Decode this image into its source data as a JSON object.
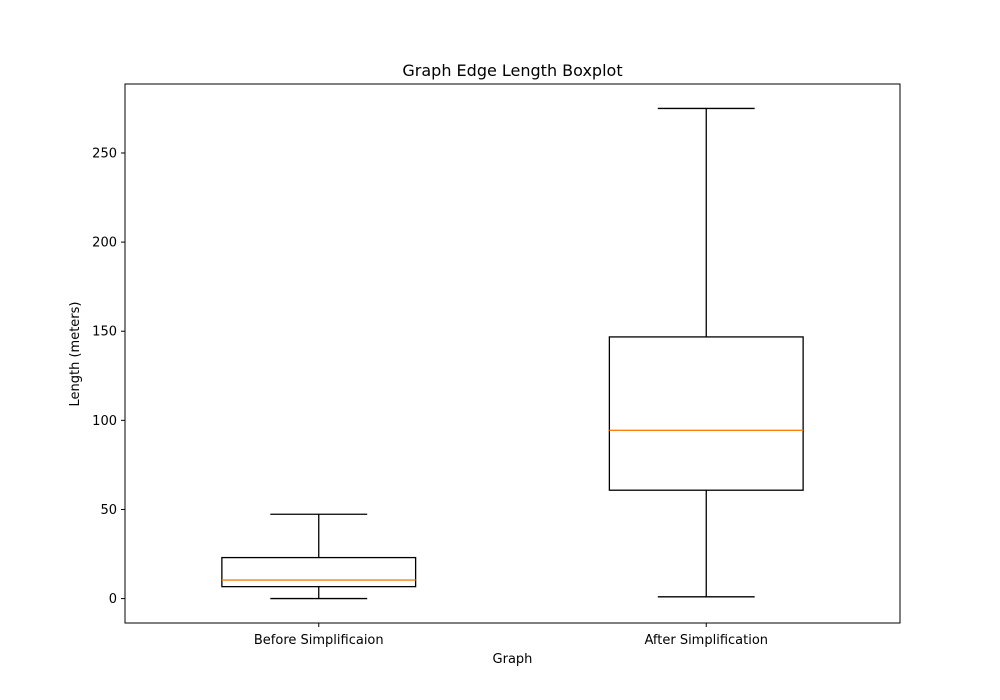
{
  "chart_data": {
    "type": "boxplot",
    "title": "Graph Edge Length Boxplot",
    "xlabel": "Graph",
    "ylabel": "Length (meters)",
    "ylim": [
      -13.7,
      288.7
    ],
    "yticks": [
      0,
      50,
      100,
      150,
      200,
      250
    ],
    "categories": [
      "Before Simplificaion",
      "After Simplification"
    ],
    "boxes": [
      {
        "whisker_low": 0,
        "q1": 6.7,
        "median": 10.4,
        "q3": 23.0,
        "whisker_high": 47.3
      },
      {
        "whisker_low": 1.0,
        "q1": 60.8,
        "median": 94.4,
        "q3": 146.8,
        "whisker_high": 275.0
      }
    ],
    "grid": false,
    "colors": {
      "box": "#000000",
      "median": "#ff7f0e"
    }
  }
}
